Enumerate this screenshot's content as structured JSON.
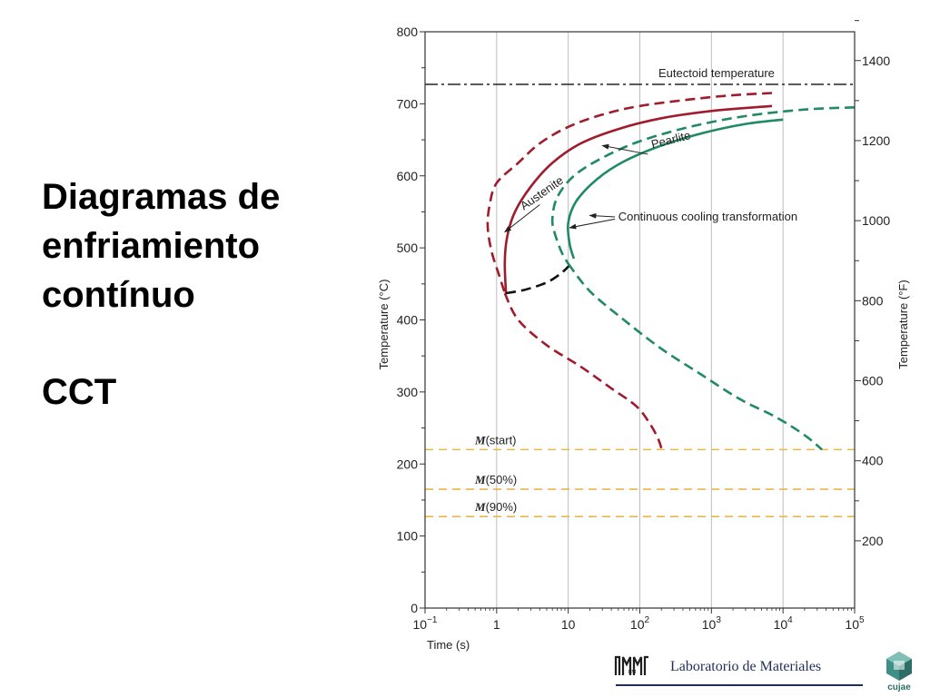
{
  "slide": {
    "title_lines": [
      "Diagramas de",
      "enfriamiento",
      "contínuo"
    ],
    "subtitle": "CCT"
  },
  "footer": {
    "lab_name": "Laboratorio de Materiales",
    "university_logo_text": "cujae",
    "lab_logo_text": "LM"
  },
  "colors": {
    "red": "#a01c2c",
    "green": "#1f8a64",
    "black": "#111111",
    "martensite": "#e8b84a",
    "axis": "#333333"
  },
  "chart_data": {
    "type": "line",
    "x_scale": "log",
    "xlabel": "Time (s)",
    "ylabel": "Temperature (°C)",
    "ylabel_right": "Temperature (°F)",
    "xlim": [
      0.1,
      100000
    ],
    "ylim": [
      0,
      800
    ],
    "ylim_right": [
      32,
      1472
    ],
    "x_ticks": [
      {
        "value": 0.1,
        "base": "10",
        "exp": "−1"
      },
      {
        "value": 1,
        "base": "1",
        "exp": ""
      },
      {
        "value": 10,
        "base": "10",
        "exp": ""
      },
      {
        "value": 100,
        "base": "10",
        "exp": "2"
      },
      {
        "value": 1000,
        "base": "10",
        "exp": "3"
      },
      {
        "value": 10000,
        "base": "10",
        "exp": "4"
      },
      {
        "value": 100000,
        "base": "10",
        "exp": "5"
      }
    ],
    "y_ticks": [
      0,
      100,
      200,
      300,
      400,
      500,
      600,
      700,
      800
    ],
    "y_ticks_right": [
      200,
      400,
      600,
      800,
      1000,
      1200,
      1400
    ],
    "horizontal_lines": [
      {
        "label": "Eutectoid temperature",
        "y": 727,
        "style": "dashdot",
        "color_key": "axis"
      },
      {
        "label_italic": "M",
        "label_rest": "(start)",
        "y": 220,
        "style": "dashed",
        "color_key": "martensite"
      },
      {
        "label_italic": "M",
        "label_rest": "(50%)",
        "y": 165,
        "style": "dashed",
        "color_key": "martensite"
      },
      {
        "label_italic": "M",
        "label_rest": "(90%)",
        "y": 127,
        "style": "dashed",
        "color_key": "martensite"
      }
    ],
    "series": [
      {
        "color_key": "red",
        "style": "dashed",
        "points": [
          [
            7000,
            715
          ],
          [
            2000,
            712
          ],
          [
            500,
            706
          ],
          [
            100,
            697
          ],
          [
            30,
            685
          ],
          [
            10,
            668
          ],
          [
            4,
            645
          ],
          [
            2,
            618
          ],
          [
            1,
            590
          ],
          [
            0.8,
            560
          ],
          [
            0.75,
            530
          ],
          [
            0.85,
            495
          ],
          [
            1.1,
            460
          ],
          [
            1.3,
            437
          ]
        ]
      },
      {
        "color_key": "red",
        "style": "dashed",
        "points": [
          [
            1.3,
            437
          ],
          [
            2,
            400
          ],
          [
            5,
            365
          ],
          [
            15,
            335
          ],
          [
            40,
            305
          ],
          [
            90,
            280
          ],
          [
            140,
            255
          ],
          [
            180,
            235
          ],
          [
            200,
            222
          ]
        ]
      },
      {
        "color_key": "red",
        "style": "solid",
        "points": [
          [
            7000,
            697
          ],
          [
            1000,
            690
          ],
          [
            200,
            680
          ],
          [
            50,
            665
          ],
          [
            15,
            645
          ],
          [
            6,
            618
          ],
          [
            3,
            585
          ],
          [
            1.8,
            550
          ],
          [
            1.4,
            515
          ],
          [
            1.3,
            480
          ],
          [
            1.35,
            437
          ]
        ]
      },
      {
        "color_key": "black",
        "style": "dashed",
        "points": [
          [
            1.35,
            437
          ],
          [
            2.5,
            442
          ],
          [
            5,
            452
          ],
          [
            8,
            465
          ],
          [
            11,
            478
          ]
        ]
      },
      {
        "color_key": "green",
        "style": "dashed",
        "points": [
          [
            100000,
            695
          ],
          [
            20000,
            692
          ],
          [
            3000,
            683
          ],
          [
            500,
            668
          ],
          [
            100,
            648
          ],
          [
            30,
            625
          ],
          [
            12,
            600
          ],
          [
            7,
            570
          ],
          [
            6,
            540
          ],
          [
            6.5,
            520
          ],
          [
            8,
            495
          ],
          [
            10,
            478
          ]
        ]
      },
      {
        "color_key": "green",
        "style": "dashed",
        "points": [
          [
            10,
            478
          ],
          [
            20,
            440
          ],
          [
            60,
            400
          ],
          [
            200,
            360
          ],
          [
            700,
            325
          ],
          [
            2500,
            290
          ],
          [
            8000,
            265
          ],
          [
            20000,
            240
          ],
          [
            35000,
            220
          ]
        ]
      },
      {
        "color_key": "green",
        "style": "solid",
        "points": [
          [
            10000,
            678
          ],
          [
            3000,
            672
          ],
          [
            800,
            660
          ],
          [
            200,
            642
          ],
          [
            60,
            620
          ],
          [
            25,
            595
          ],
          [
            13,
            565
          ],
          [
            10,
            535
          ],
          [
            10.5,
            505
          ],
          [
            12,
            485
          ]
        ]
      }
    ],
    "annotations": [
      {
        "text": "Pearlite",
        "x": 150,
        "y": 638,
        "rotate": -14
      },
      {
        "text": "Austenite",
        "x": 2.4,
        "y": 552,
        "rotate": -35
      },
      {
        "text": "Continuous cooling transformation",
        "x": 50,
        "y": 538,
        "rotate": 0
      }
    ],
    "arrows": [
      {
        "from": [
          130,
          630
        ],
        "to": [
          30,
          642
        ]
      },
      {
        "from": [
          4.0,
          560
        ],
        "to": [
          1.3,
          522
        ]
      },
      {
        "from": [
          45,
          543
        ],
        "to": [
          20,
          545
        ]
      },
      {
        "from": [
          45,
          540
        ],
        "to": [
          10.5,
          528
        ]
      }
    ]
  }
}
